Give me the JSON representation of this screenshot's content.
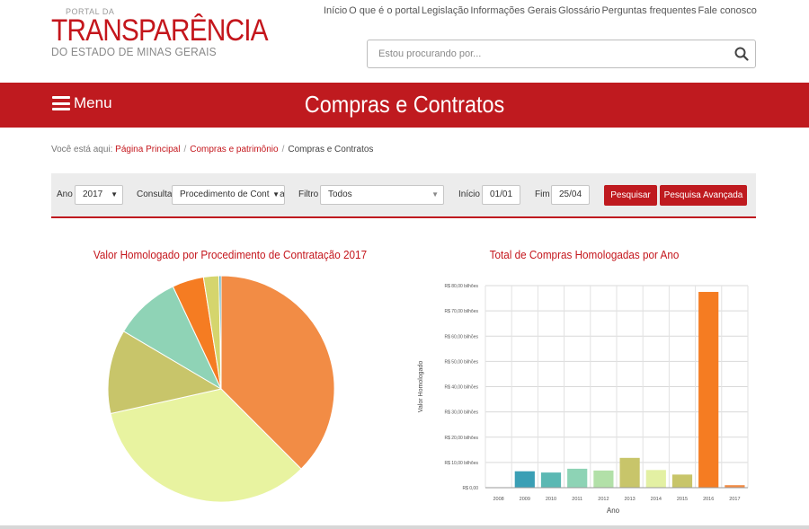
{
  "logo": {
    "small": "PORTAL DA",
    "big": "TRANSPARÊNCIA",
    "sub": "DO ESTADO DE MINAS GERAIS"
  },
  "topnav": [
    {
      "label": "Início",
      "name": "nav-inicio"
    },
    {
      "label": "O que é o portal",
      "name": "nav-o-que-e"
    },
    {
      "label": "Legislação",
      "name": "nav-legislacao"
    },
    {
      "label": "Informações Gerais",
      "name": "nav-informacoes"
    },
    {
      "label": "Glossário",
      "name": "nav-glossario"
    },
    {
      "label": "Perguntas frequentes",
      "name": "nav-perguntas"
    },
    {
      "label": "Fale conosco",
      "name": "nav-fale-conosco"
    }
  ],
  "search": {
    "placeholder": "Estou procurando por...",
    "icon": "search-icon"
  },
  "redbar": {
    "menu_label": "Menu",
    "title": "Compras e Contratos",
    "menu_icon": "hamburger-icon",
    "color": "#bf1a1f"
  },
  "breadcrumb": {
    "prefix": "Você está aqui:",
    "items": [
      "Página Principal",
      "Compras e patrimônio"
    ],
    "current": "Compras e Contratos"
  },
  "filters": {
    "ano_label": "Ano",
    "ano_value": "2017",
    "consulta_label": "Consulta",
    "consulta_value": "Procedimento de Contratação",
    "filtro_label": "Filtro",
    "filtro_value": "Todos",
    "inicio_label": "Início",
    "inicio_value": "01/01",
    "fim_label": "Fim",
    "fim_value": "25/04",
    "pesquisar": "Pesquisar",
    "pesquisa_avancada": "Pesquisa Avançada"
  },
  "chart_data": [
    {
      "type": "pie",
      "title": "Valor Homologado por Procedimento de Contratação 2017",
      "slices": [
        {
          "value": 37.5,
          "color": "#f28c45"
        },
        {
          "value": 34.0,
          "color": "#e8f3a0"
        },
        {
          "value": 12.0,
          "color": "#c8c56a"
        },
        {
          "value": 9.5,
          "color": "#8fd3b6"
        },
        {
          "value": 4.5,
          "color": "#f57c22"
        },
        {
          "value": 2.2,
          "color": "#d5d56d"
        },
        {
          "value": 0.3,
          "color": "#4aa5b8"
        }
      ]
    },
    {
      "type": "bar",
      "title": "Total de Compras Homologadas por Ano",
      "xlabel": "Ano",
      "ylabel": "Valor Homologado",
      "categories": [
        "2008",
        "2009",
        "2010",
        "2011",
        "2012",
        "2013",
        "2014",
        "2015",
        "2016",
        "2017"
      ],
      "values": [
        0.1,
        6.5,
        6.0,
        7.5,
        6.8,
        11.8,
        7.0,
        5.2,
        77.5,
        1.0
      ],
      "colors": [
        "#3a9fb5",
        "#3a9fb5",
        "#5bb8b3",
        "#8dd3b5",
        "#b2e0a8",
        "#c8c56a",
        "#e3f0a3",
        "#c8c56a",
        "#f57c22",
        "#f28c45"
      ],
      "ylim": [
        0,
        80
      ],
      "yticks": [
        0,
        10,
        20,
        30,
        40,
        50,
        60,
        70,
        80
      ],
      "ytick_labels": [
        "R$ 0,00",
        "R$ 10,00 bilhões",
        "R$ 20,00 bilhões",
        "R$ 30,00 bilhões",
        "R$ 40,00 bilhões",
        "R$ 50,00 bilhões",
        "R$ 60,00 bilhões",
        "R$ 70,00 bilhões",
        "R$ 80,00 bilhões"
      ],
      "grid": true
    }
  ]
}
